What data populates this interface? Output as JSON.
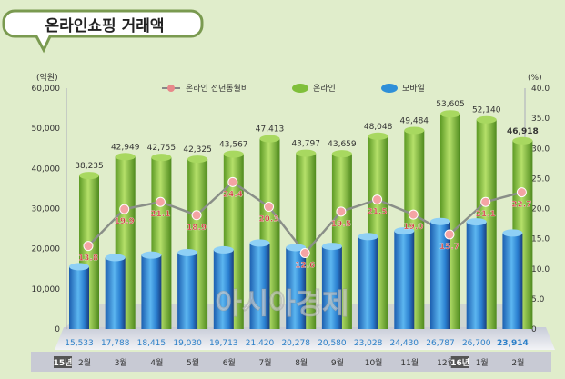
{
  "chart_data": {
    "type": "bar",
    "title": "온라인쇼핑 거래액",
    "ylabel_left": "(억원)",
    "ylabel_right": "(%)",
    "ylim_left": [
      0,
      60000
    ],
    "ylim_right": [
      0,
      40
    ],
    "yticks_left": [
      "0",
      "10,000",
      "20,000",
      "30,000",
      "40,000",
      "50,000",
      "60,000"
    ],
    "yticks_right": [
      "0",
      "5.0",
      "10.0",
      "15.0",
      "20.0",
      "25.0",
      "30.0",
      "35.0",
      "40.0"
    ],
    "categories": [
      "2월",
      "3월",
      "4월",
      "5월",
      "6월",
      "7월",
      "8월",
      "9월",
      "10월",
      "11월",
      "12월",
      "1월",
      "2월"
    ],
    "year_markers": [
      {
        "index": 0,
        "label": "15년"
      },
      {
        "index": 11,
        "label": "16년"
      }
    ],
    "legend_position": "top-center",
    "series": [
      {
        "name": "온라인 전년동월비",
        "type": "line",
        "axis": "right",
        "color": "#e8888a",
        "values": [
          13.8,
          19.9,
          21.1,
          18.9,
          24.4,
          20.3,
          12.6,
          19.5,
          21.5,
          19.0,
          15.7,
          21.1,
          22.7
        ],
        "labels": [
          "13.8",
          "19.9",
          "21.1",
          "18.9",
          "24.4",
          "20.3",
          "12.6",
          "19.5",
          "21.5",
          "19.0",
          "15.7",
          "21.1",
          "22.7"
        ]
      },
      {
        "name": "온라인",
        "type": "bar",
        "axis": "left",
        "color": "#7fbf3a",
        "values": [
          38235,
          42949,
          42755,
          42325,
          43567,
          47413,
          43797,
          43659,
          48048,
          49484,
          53605,
          52140,
          46918
        ],
        "labels": [
          "38,235",
          "42,949",
          "42,755",
          "42,325",
          "43,567",
          "47,413",
          "43,797",
          "43,659",
          "48,048",
          "49,484",
          "53,605",
          "52,140",
          "46,918"
        ]
      },
      {
        "name": "모바일",
        "type": "bar",
        "axis": "left",
        "color": "#2f8fd8",
        "values": [
          15533,
          17788,
          18415,
          19030,
          19713,
          21420,
          20278,
          20580,
          23028,
          24430,
          26787,
          26700,
          23914
        ],
        "labels": [
          "15,533",
          "17,788",
          "18,415",
          "19,030",
          "19,713",
          "21,420",
          "20,278",
          "20,580",
          "23,028",
          "24,430",
          "26,787",
          "26,700",
          "23,914"
        ]
      }
    ],
    "watermark": "아시아경제"
  }
}
